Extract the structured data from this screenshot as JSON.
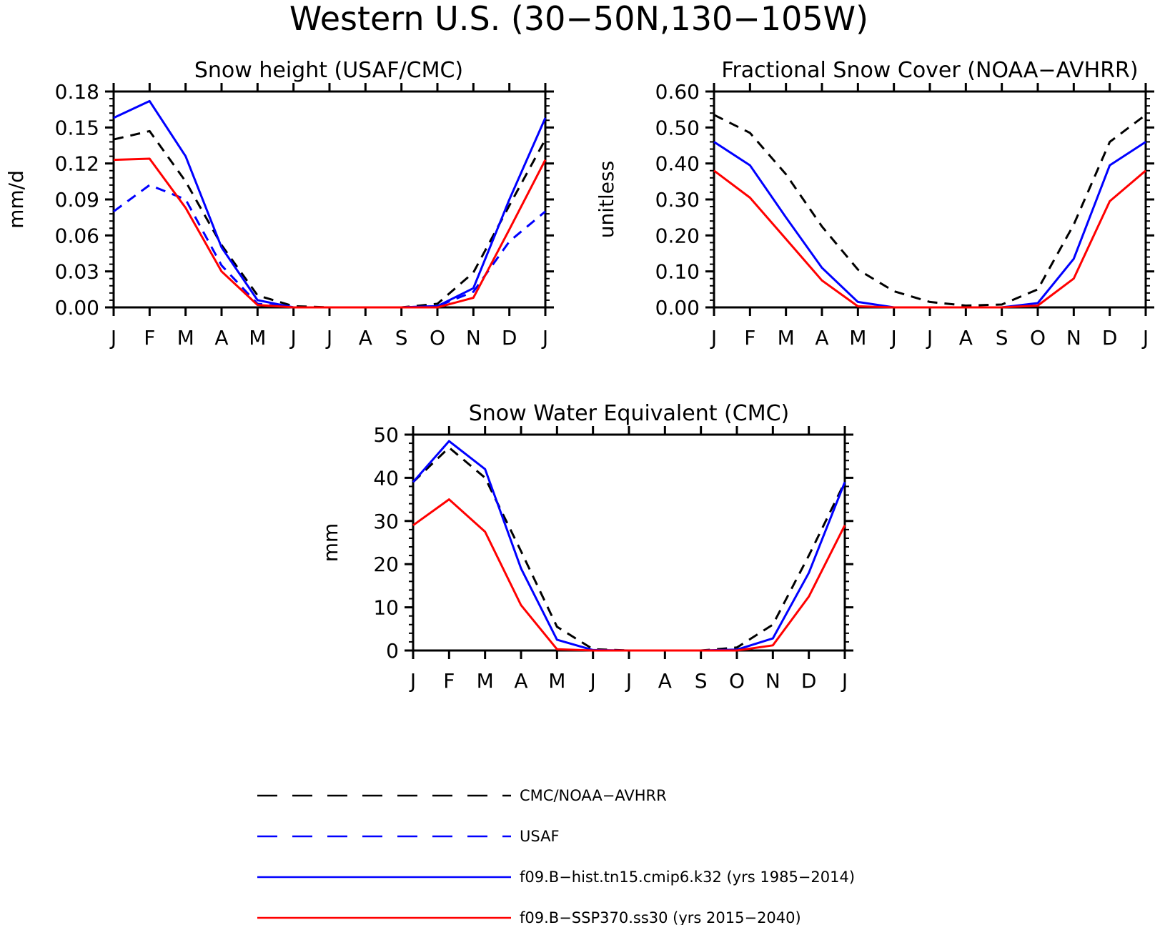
{
  "figure_title": "Western U.S. (30−50N,130−105W)",
  "months": [
    "J",
    "F",
    "M",
    "A",
    "M",
    "J",
    "J",
    "A",
    "S",
    "O",
    "N",
    "D",
    "J"
  ],
  "legend": [
    {
      "label": "CMC/NOAA−AVHRR",
      "color": "#000000",
      "dash": "dashed"
    },
    {
      "label": "USAF",
      "color": "#0000ff",
      "dash": "dashed"
    },
    {
      "label": "f09.B−hist.tn15.cmip6.k32 (yrs 1985−2014)",
      "color": "#0000ff",
      "dash": "solid"
    },
    {
      "label": "f09.B−SSP370.ss30 (yrs 2015−2040)",
      "color": "#ff0000",
      "dash": "solid"
    }
  ],
  "chart_data": [
    {
      "type": "line",
      "title": "Snow height (USAF/CMC)",
      "ylabel": "mm/d",
      "xlabel": "",
      "categories": [
        "J",
        "F",
        "M",
        "A",
        "M",
        "J",
        "J",
        "A",
        "S",
        "O",
        "N",
        "D",
        "J"
      ],
      "ylim": [
        0,
        0.18
      ],
      "yticks": [
        "0.00",
        "0.03",
        "0.06",
        "0.09",
        "0.12",
        "0.15",
        "0.18"
      ],
      "series": [
        {
          "name": "CMC/NOAA−AVHRR",
          "color": "#000000",
          "dash": "dashed",
          "values": [
            0.14,
            0.147,
            0.105,
            0.052,
            0.01,
            0.001,
            0.0,
            0.0,
            0.0,
            0.003,
            0.029,
            0.085,
            0.14
          ]
        },
        {
          "name": "USAF",
          "color": "#0000ff",
          "dash": "dashed",
          "values": [
            0.08,
            0.102,
            0.09,
            0.035,
            0.003,
            0.0,
            0.0,
            0.0,
            0.0,
            0.001,
            0.013,
            0.055,
            0.08
          ]
        },
        {
          "name": "f09.B−hist.tn15.cmip6.k32 (yrs 1985−2014)",
          "color": "#0000ff",
          "dash": "solid",
          "values": [
            0.158,
            0.172,
            0.126,
            0.05,
            0.006,
            0.0,
            0.0,
            0.0,
            0.0,
            0.001,
            0.016,
            0.09,
            0.158
          ]
        },
        {
          "name": "f09.B−SSP370.ss30 (yrs 2015−2040)",
          "color": "#ff0000",
          "dash": "solid",
          "values": [
            0.123,
            0.124,
            0.083,
            0.03,
            0.002,
            0.0,
            0.0,
            0.0,
            0.0,
            0.0,
            0.008,
            0.065,
            0.123
          ]
        }
      ]
    },
    {
      "type": "line",
      "title": "Fractional Snow Cover (NOAA−AVHRR)",
      "ylabel": "unitless",
      "xlabel": "",
      "categories": [
        "J",
        "F",
        "M",
        "A",
        "M",
        "J",
        "J",
        "A",
        "S",
        "O",
        "N",
        "D",
        "J"
      ],
      "ylim": [
        0,
        0.6
      ],
      "yticks": [
        "0.00",
        "0.10",
        "0.20",
        "0.30",
        "0.40",
        "0.50",
        "0.60"
      ],
      "series": [
        {
          "name": "CMC/NOAA−AVHRR",
          "color": "#000000",
          "dash": "dashed",
          "values": [
            0.535,
            0.485,
            0.37,
            0.225,
            0.105,
            0.045,
            0.015,
            0.005,
            0.008,
            0.05,
            0.23,
            0.46,
            0.535
          ]
        },
        {
          "name": "f09.B−hist.tn15.cmip6.k32 (yrs 1985−2014)",
          "color": "#0000ff",
          "dash": "solid",
          "values": [
            0.46,
            0.395,
            0.25,
            0.11,
            0.015,
            0.0,
            0.0,
            0.0,
            0.0,
            0.012,
            0.135,
            0.395,
            0.46
          ]
        },
        {
          "name": "f09.B−SSP370.ss30 (yrs 2015−2040)",
          "color": "#ff0000",
          "dash": "solid",
          "values": [
            0.38,
            0.305,
            0.19,
            0.075,
            0.003,
            0.0,
            0.0,
            0.0,
            0.0,
            0.005,
            0.08,
            0.295,
            0.38
          ]
        }
      ]
    },
    {
      "type": "line",
      "title": "Snow Water Equivalent (CMC)",
      "ylabel": "mm",
      "xlabel": "",
      "categories": [
        "J",
        "F",
        "M",
        "A",
        "M",
        "J",
        "J",
        "A",
        "S",
        "O",
        "N",
        "D",
        "J"
      ],
      "ylim": [
        0,
        50
      ],
      "yticks": [
        "0",
        "10",
        "20",
        "30",
        "40",
        "50"
      ],
      "series": [
        {
          "name": "CMC/NOAA−AVHRR",
          "color": "#000000",
          "dash": "dashed",
          "values": [
            39.0,
            47.0,
            40.0,
            23.0,
            5.5,
            0.3,
            0.0,
            0.0,
            0.0,
            0.7,
            6.0,
            22.0,
            39.0
          ]
        },
        {
          "name": "f09.B−hist.tn15.cmip6.k32 (yrs 1985−2014)",
          "color": "#0000ff",
          "dash": "solid",
          "values": [
            39.0,
            48.5,
            42.0,
            19.0,
            2.5,
            0.1,
            0.0,
            0.0,
            0.0,
            0.2,
            2.8,
            18.0,
            39.0
          ]
        },
        {
          "name": "f09.B−SSP370.ss30 (yrs 2015−2040)",
          "color": "#ff0000",
          "dash": "solid",
          "values": [
            29.0,
            35.0,
            27.5,
            10.5,
            0.3,
            0.0,
            0.0,
            0.0,
            0.0,
            0.0,
            1.2,
            12.5,
            29.0
          ]
        }
      ]
    }
  ]
}
